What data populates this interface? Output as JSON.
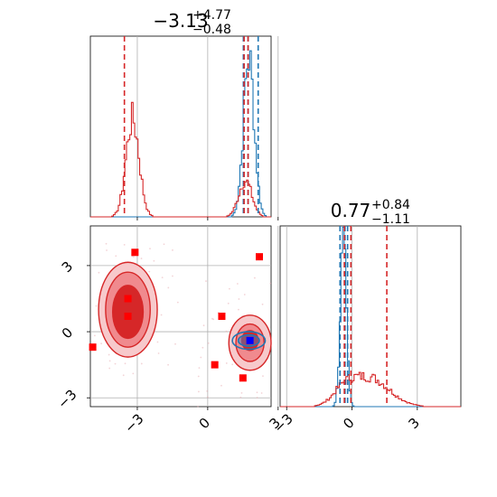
{
  "chart_data": {
    "type": "corner",
    "colors": {
      "red": "#d62728",
      "blue": "#1f77b4",
      "point": "#ff0000",
      "truth": "#0000ff",
      "grid": "#b0b0b0"
    },
    "grid": true,
    "titles": {
      "param1": {
        "main": "−3.13",
        "sup": "+4.77",
        "sub": "−0.48"
      },
      "param2": {
        "main": "0.77",
        "sup": "+0.84",
        "sub": "−1.11"
      }
    },
    "axes": {
      "param1": {
        "range": [
          -5.0,
          2.7
        ],
        "ticks": [
          -3,
          0,
          3
        ],
        "tick_labels": [
          "−3",
          "0",
          "3"
        ]
      },
      "param2": {
        "range": [
          -3.3,
          5.0
        ],
        "ticks": [
          -3,
          0,
          3
        ],
        "tick_labels": [
          "−3",
          "0",
          "3"
        ]
      },
      "param2_y": {
        "range": [
          -3.4,
          4.8
        ],
        "ticks": [
          -3,
          0,
          3
        ],
        "tick_labels": [
          "−3",
          "0",
          "3"
        ]
      }
    },
    "hist_param1": {
      "red_peaks": [
        {
          "center": -3.2,
          "sigma": 0.28,
          "height": 0.54
        },
        {
          "center": 1.6,
          "sigma": 0.28,
          "height": 0.2
        }
      ],
      "blue_peaks": [
        {
          "center": 1.75,
          "sigma": 0.23,
          "height": 0.88
        }
      ],
      "quantiles_red": [
        -3.55,
        1.55,
        1.72
      ],
      "quantiles_blue": [
        1.52,
        1.72,
        2.15
      ]
    },
    "hist_param2": {
      "red_peaks": [
        {
          "center": 0.8,
          "sigma": 0.9,
          "height": 0.16
        },
        {
          "center": -0.35,
          "sigma": 0.5,
          "height": 0.07
        }
      ],
      "blue_peaks": [
        {
          "center": -0.4,
          "sigma": 0.14,
          "height": 0.88
        }
      ],
      "quantiles_red": [
        -0.35,
        -0.05,
        1.6
      ],
      "quantiles_blue": [
        -0.55,
        -0.32,
        -0.2
      ]
    },
    "scatter_2d": {
      "red_points": [
        {
          "x": -3.1,
          "y": 3.6
        },
        {
          "x": 2.2,
          "y": 3.4
        },
        {
          "x": -3.4,
          "y": 1.5
        },
        {
          "x": -3.4,
          "y": 0.7
        },
        {
          "x": 0.6,
          "y": 0.7
        },
        {
          "x": -4.9,
          "y": -0.7
        },
        {
          "x": 0.3,
          "y": -1.5
        },
        {
          "x": 1.5,
          "y": -2.1
        }
      ],
      "truth_point": {
        "x": 1.8,
        "y": -0.4
      },
      "contours_red": [
        {
          "cx": -3.4,
          "cy": 1.0,
          "rx": 1.25,
          "ry": 2.15
        },
        {
          "cx": -3.4,
          "cy": 1.0,
          "rx": 0.95,
          "ry": 1.7
        },
        {
          "cx": -3.4,
          "cy": 0.9,
          "rx": 0.65,
          "ry": 1.2
        },
        {
          "cx": 1.8,
          "cy": -0.5,
          "rx": 0.9,
          "ry": 1.25
        },
        {
          "cx": 1.8,
          "cy": -0.5,
          "rx": 0.6,
          "ry": 0.85
        },
        {
          "cx": 1.8,
          "cy": -0.4,
          "rx": 0.35,
          "ry": 0.45
        }
      ],
      "contours_blue": [
        {
          "cx": 1.75,
          "cy": -0.4,
          "rx": 0.7,
          "ry": 0.4
        },
        {
          "cx": 1.75,
          "cy": -0.4,
          "rx": 0.45,
          "ry": 0.26
        }
      ]
    }
  }
}
